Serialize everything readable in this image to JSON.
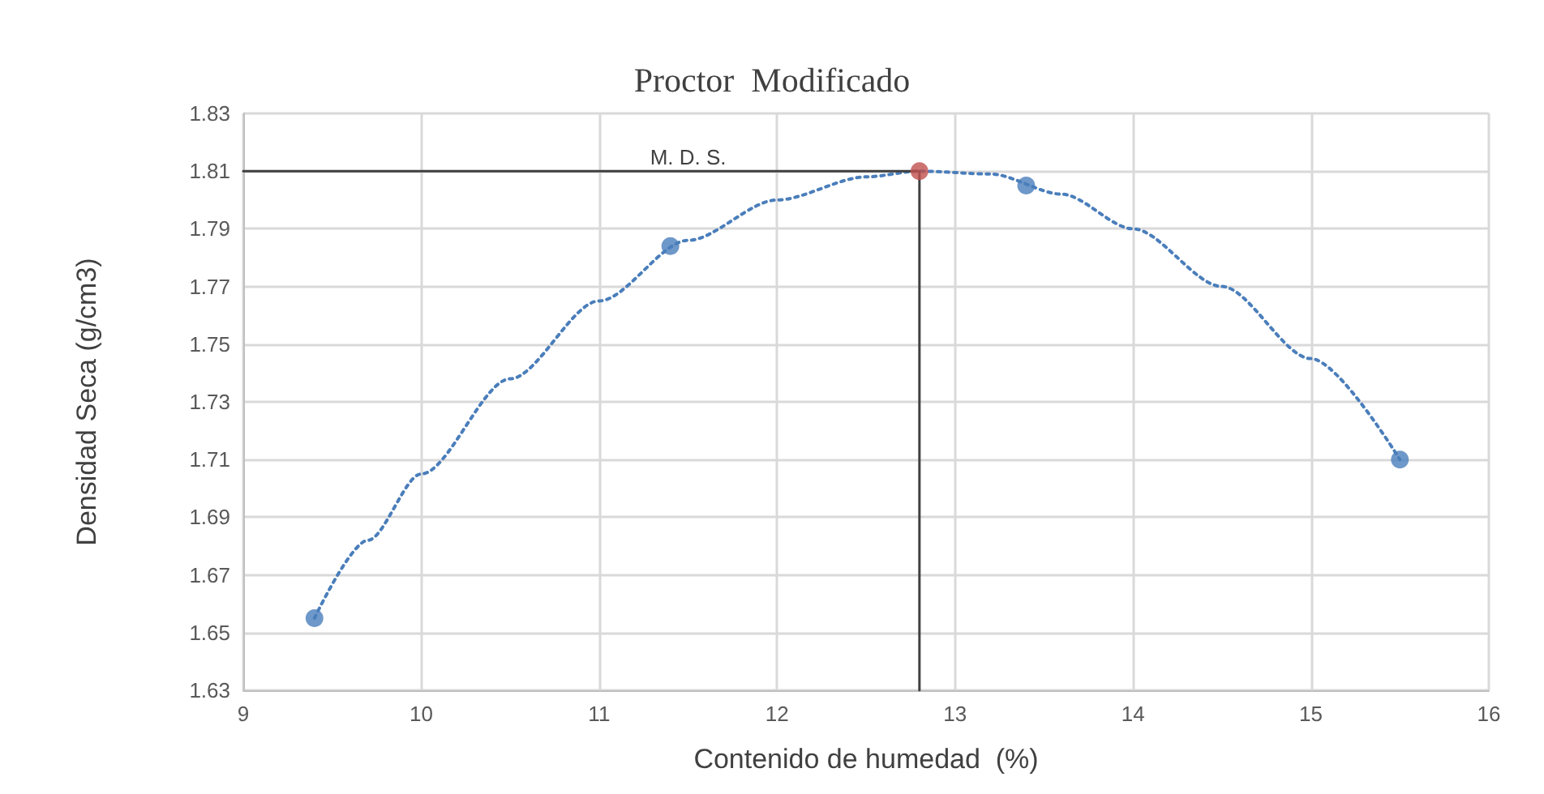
{
  "chart_data": {
    "type": "scatter",
    "title": "Proctor  Modificado",
    "xlabel": "Contenido de humedad  (%)",
    "ylabel": "Densidad Seca (g/cm3)",
    "xlim": [
      9,
      16
    ],
    "xticks": [
      9,
      10,
      11,
      12,
      13,
      14,
      15,
      16
    ],
    "ylim": [
      1.63,
      1.83
    ],
    "yticks": [
      1.63,
      1.65,
      1.67,
      1.69,
      1.71,
      1.73,
      1.75,
      1.77,
      1.79,
      1.81,
      1.83
    ],
    "grid": true,
    "marker": "circle",
    "series": [
      {
        "type": "line",
        "color": "#4a7ebb",
        "line_style": "dotted",
        "marker": "none",
        "x": [
          9.4,
          9.7,
          10,
          10.5,
          11,
          11.5,
          12,
          12.5,
          12.8,
          13.2,
          13.6,
          14,
          14.5,
          15,
          15.5
        ],
        "values": [
          1.655,
          1.682,
          1.705,
          1.738,
          1.765,
          1.786,
          1.8,
          1.808,
          1.81,
          1.809,
          1.802,
          1.79,
          1.77,
          1.745,
          1.71
        ]
      },
      {
        "type": "line",
        "color": "#404040",
        "line_style": "solid",
        "marker": "none",
        "x": [
          9,
          12.8,
          12.8
        ],
        "values": [
          1.81,
          1.81,
          1.63
        ]
      },
      {
        "color": "#4a7ebb",
        "x": [
          9.4,
          11.4,
          13.4,
          15.5
        ],
        "values": [
          1.655,
          1.784,
          1.805,
          1.71
        ]
      },
      {
        "color": "#c0504d",
        "x": [
          12.8
        ],
        "values": [
          1.81
        ]
      }
    ],
    "annotations": [
      {
        "text": "M. D. S.",
        "x": 11.5,
        "y": 1.81
      }
    ]
  }
}
